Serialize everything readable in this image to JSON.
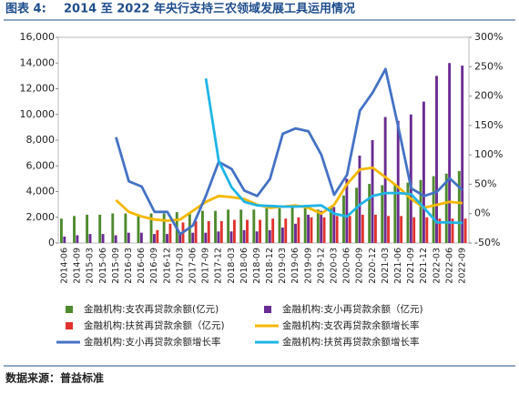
{
  "header": {
    "label": "图表 4:",
    "title": "2014 至 2022 年央行支持三农领域发展工具运用情况"
  },
  "source": "数据来源：普益标准",
  "chart_data": {
    "type": "bar_line",
    "categories": [
      "2014-06",
      "2014-09",
      "2015-03",
      "2015-06",
      "2015-09",
      "2016-03",
      "2016-06",
      "2016-09",
      "2016-12",
      "2017-03",
      "2017-06",
      "2017-09",
      "2017-12",
      "2018-03",
      "2018-06",
      "2018-09",
      "2018-12",
      "2019-03",
      "2019-06",
      "2019-09",
      "2019-12",
      "2020-03",
      "2020-06",
      "2020-09",
      "2020-12",
      "2021-03",
      "2021-06",
      "2021-09",
      "2021-12",
      "2022-03",
      "2022-06",
      "2022-09"
    ],
    "series": [
      {
        "name": "金融机构:支农再贷款余额(亿元)",
        "color": "#4e8a2e",
        "kind": "bar",
        "axis": "y",
        "values": [
          1900,
          2100,
          2200,
          2200,
          2300,
          2300,
          2200,
          2300,
          2300,
          2400,
          2400,
          2500,
          2500,
          2600,
          2600,
          2600,
          2700,
          2700,
          2800,
          2700,
          2600,
          2800,
          3700,
          4300,
          4600,
          4500,
          4500,
          4700,
          4900,
          5200,
          5400,
          5600
        ]
      },
      {
        "name": "金融机构:支小再贷款余额（亿元)",
        "color": "#6a2c91",
        "kind": "bar",
        "axis": "y",
        "values": [
          500,
          600,
          700,
          700,
          600,
          800,
          800,
          700,
          700,
          800,
          800,
          800,
          900,
          900,
          1000,
          900,
          1000,
          1200,
          1500,
          2200,
          2500,
          2800,
          5000,
          6800,
          8000,
          9800,
          9500,
          10000,
          11000,
          13000,
          14000,
          13800
        ]
      },
      {
        "name": "金融机构:扶贫再贷款余额（亿元)",
        "color": "#e0322e",
        "kind": "bar",
        "axis": "y",
        "values": [
          0,
          0,
          0,
          0,
          0,
          0,
          0,
          1000,
          1500,
          1600,
          1700,
          1700,
          1700,
          1800,
          1800,
          1800,
          1900,
          1900,
          2000,
          2000,
          2000,
          2100,
          2100,
          2200,
          2200,
          2100,
          2100,
          2000,
          2000,
          1900,
          1900,
          1900
        ]
      },
      {
        "name": "金融机构:支农再贷款余额增长率",
        "color": "#f5b800",
        "kind": "line",
        "axis": "y2",
        "values": [
          null,
          null,
          null,
          null,
          23,
          3,
          -5,
          -10,
          -12,
          -10,
          5,
          20,
          30,
          28,
          25,
          15,
          10,
          12,
          14,
          10,
          0,
          15,
          50,
          75,
          78,
          62,
          45,
          25,
          10,
          15,
          20,
          18
        ]
      },
      {
        "name": "金融机构:支小再贷款余额增长率",
        "color": "#4472c4",
        "kind": "line",
        "axis": "y2",
        "values": [
          null,
          null,
          null,
          null,
          130,
          55,
          46,
          3,
          3,
          -35,
          -20,
          30,
          88,
          76,
          39,
          30,
          59,
          136,
          145,
          140,
          100,
          32,
          66,
          175,
          206,
          246,
          147,
          43,
          30,
          37,
          60,
          40
        ]
      },
      {
        "name": "金融机构:扶贫再贷款余额增长率",
        "color": "#1fb5e6",
        "kind": "line",
        "axis": "y2",
        "values": [
          null,
          null,
          null,
          null,
          null,
          null,
          null,
          null,
          null,
          null,
          null,
          230,
          90,
          45,
          20,
          14,
          13,
          12,
          12,
          13,
          14,
          0,
          -5,
          15,
          30,
          35,
          35,
          33,
          10,
          -15,
          -15,
          -16
        ]
      }
    ],
    "ylim": [
      0,
      16000
    ],
    "yticks": [
      0,
      {
        "value": 2000,
        "label": "2,000"
      },
      {
        "value": 4000,
        "label": "4,000"
      },
      {
        "value": 6000,
        "label": "6,000"
      },
      {
        "value": 8000,
        "label": "8,000"
      },
      {
        "value": 10000,
        "label": "10,000"
      },
      {
        "value": 12000,
        "label": "12,000"
      },
      {
        "value": 14000,
        "label": "14,000"
      },
      {
        "value": 16000,
        "label": "16,000"
      }
    ],
    "y2lim": [
      -50,
      300
    ],
    "y2ticks": [
      {
        "value": -50,
        "label": "-50%"
      },
      {
        "value": 0,
        "label": "0%"
      },
      {
        "value": 50,
        "label": "50%"
      },
      {
        "value": 100,
        "label": "100%"
      },
      {
        "value": 150,
        "label": "150%"
      },
      {
        "value": 200,
        "label": "200%"
      },
      {
        "value": 250,
        "label": "250%"
      },
      {
        "value": 300,
        "label": "300%"
      }
    ]
  }
}
